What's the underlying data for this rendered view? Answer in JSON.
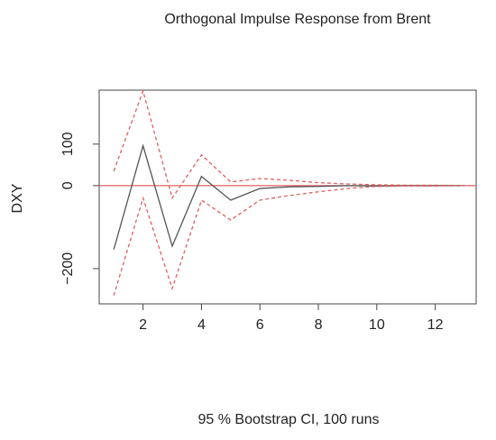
{
  "chart_data": {
    "type": "line",
    "title": "Orthogonal Impulse Response from Brent",
    "y_label": "DXY",
    "x_label": "95 % Bootstrap CI,  100 runs",
    "x": [
      1,
      2,
      3,
      4,
      5,
      6,
      7,
      8,
      9,
      10,
      11,
      12,
      13
    ],
    "series": [
      {
        "color": "#555555",
        "dashed": false,
        "values": [
          -154,
          96,
          -146,
          22,
          -35,
          -7,
          -3,
          -2,
          0,
          -1,
          0,
          0,
          0
        ]
      },
      {
        "color": "#e06060",
        "dashed": true,
        "values": [
          35,
          228,
          -30,
          74,
          9,
          17,
          13,
          7,
          4,
          2,
          1,
          1,
          0
        ]
      },
      {
        "color": "#e06060",
        "dashed": true,
        "values": [
          -265,
          -30,
          -248,
          -35,
          -83,
          -35,
          -24,
          -15,
          -7,
          -2,
          -1,
          -1,
          0
        ]
      }
    ],
    "reference_line": {
      "value": 0,
      "color": "#e06060"
    },
    "xlim": [
      0.5,
      13.4
    ],
    "xticks": [
      2,
      4,
      6,
      8,
      10,
      12
    ],
    "ylim": [
      -285,
      230
    ],
    "yticks": [
      {
        "value": -200,
        "label": "−200"
      },
      0,
      100
    ]
  }
}
